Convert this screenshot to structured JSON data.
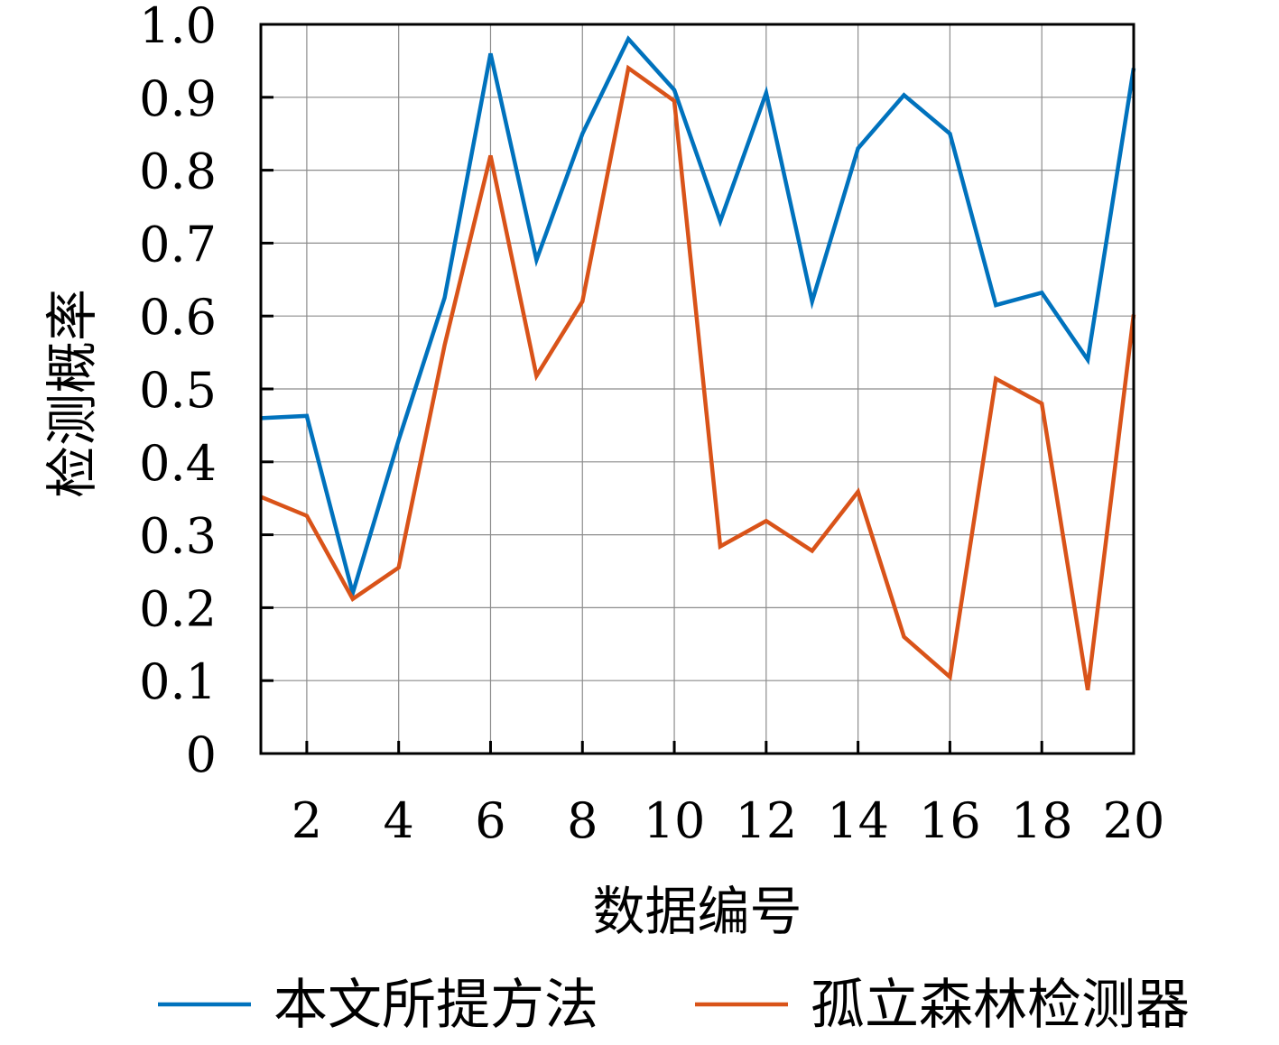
{
  "chart_data": {
    "type": "line",
    "xlabel": "数据编号",
    "ylabel": "检测概率",
    "xlim": [
      1,
      20
    ],
    "ylim": [
      0,
      1.0
    ],
    "x": [
      1,
      2,
      3,
      4,
      5,
      6,
      7,
      8,
      9,
      10,
      11,
      12,
      13,
      14,
      15,
      16,
      17,
      18,
      19,
      20
    ],
    "x_ticks": [
      2,
      4,
      6,
      8,
      10,
      12,
      14,
      16,
      18,
      20
    ],
    "x_tick_labels": [
      "2",
      "4",
      "6",
      "8",
      "10",
      "12",
      "14",
      "16",
      "18",
      "20"
    ],
    "y_ticks": [
      0,
      0.1,
      0.2,
      0.3,
      0.4,
      0.5,
      0.6,
      0.7,
      0.8,
      0.9,
      1.0
    ],
    "y_tick_labels": [
      "0",
      "0.1",
      "0.2",
      "0.3",
      "0.4",
      "0.5",
      "0.6",
      "0.7",
      "0.8",
      "0.9",
      "1.0"
    ],
    "grid": true,
    "legend_position": "bottom",
    "series": [
      {
        "name": "本文所提方法",
        "color": "#0072BD",
        "values": [
          0.46,
          0.463,
          0.22,
          0.43,
          0.625,
          0.96,
          0.677,
          0.85,
          0.98,
          0.91,
          0.73,
          0.906,
          0.62,
          0.83,
          0.903,
          0.85,
          0.615,
          0.632,
          0.54,
          0.94
        ]
      },
      {
        "name": "孤立森林检测器",
        "color": "#D95319",
        "values": [
          0.352,
          0.326,
          0.212,
          0.255,
          0.56,
          0.82,
          0.518,
          0.62,
          0.94,
          0.895,
          0.284,
          0.319,
          0.278,
          0.359,
          0.16,
          0.105,
          0.514,
          0.48,
          0.087,
          0.602
        ]
      }
    ]
  }
}
